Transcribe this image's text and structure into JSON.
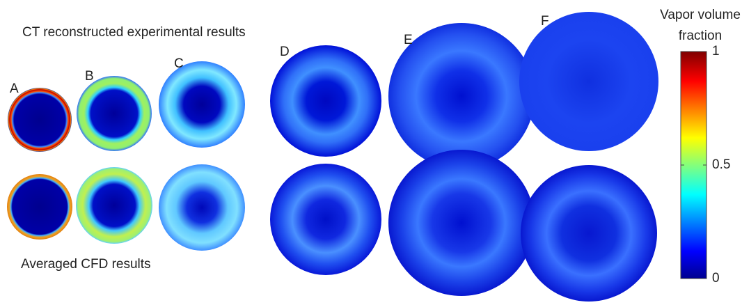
{
  "title_top": "CT reconstructed experimental results",
  "title_bottom": "Averaged CFD results",
  "panels": [
    "A",
    "B",
    "C",
    "D",
    "E",
    "F"
  ],
  "colorbar": {
    "label": [
      "Vapor volume",
      "fraction"
    ],
    "lim": [
      0,
      1
    ],
    "ticks": [
      0,
      0.5,
      1
    ]
  }
}
